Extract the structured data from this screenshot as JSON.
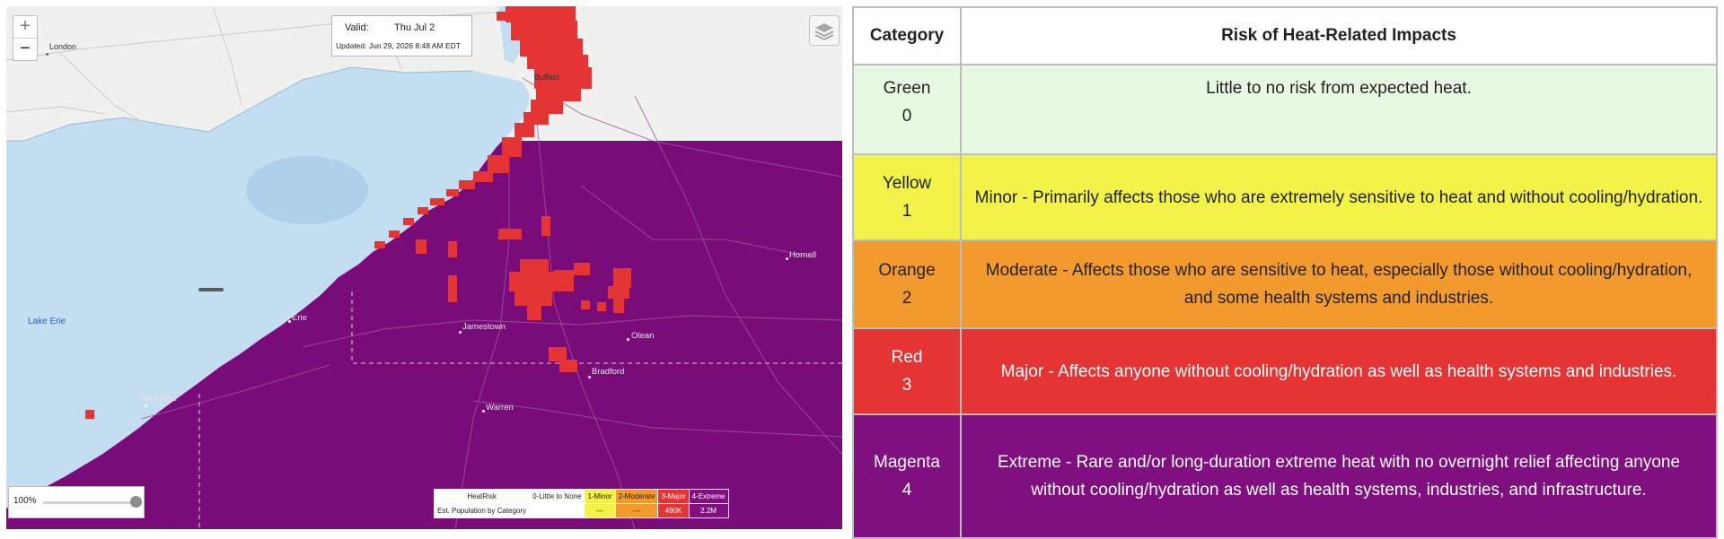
{
  "map": {
    "zoom_in": "+",
    "zoom_out": "−",
    "valid_label": "Valid:",
    "valid_date": "Thu  Jul 2",
    "updated": "Updated: Jun 29, 2026 8:48 AM EDT",
    "layers_icon": "layers-icon",
    "places": {
      "london": "London",
      "buffalo": "Buffalo",
      "lake_erie": "Lake Erie",
      "jamestown": "Jamestown",
      "olean": "Olean",
      "bradford": "Bradford",
      "warren": "Warren",
      "hornell": "Hornell",
      "erie": "Erie",
      "meadville": "Meadville"
    },
    "opacity_label": "100%",
    "opacity_value": 1.0,
    "legend": {
      "row1_label": "HeatRisk",
      "row2_label": "Est. Population by Category",
      "categories": [
        "0-Little to None",
        "1-Minor",
        "2-Moderate",
        "3-Major",
        "4-Extreme"
      ],
      "populations": [
        "",
        "---",
        "---",
        "490K",
        "2.2M"
      ],
      "colors": [
        "#ffffff",
        "#f2f248",
        "#f39a2e",
        "#e53434",
        "#800f80"
      ],
      "text_colors": [
        "#222222",
        "#222222",
        "#222222",
        "#ffffff",
        "#ffffff"
      ]
    },
    "colors": {
      "water": "#c3ddf1",
      "land": "#f0f0ee",
      "extreme": "#7a0c7a",
      "major": "#e53434"
    }
  },
  "risk_table": {
    "header_category": "Category",
    "header_risk": "Risk of Heat-Related Impacts",
    "rows": [
      {
        "name": "Green",
        "level": "0",
        "desc": "Little to no risk from expected heat."
      },
      {
        "name": "Yellow",
        "level": "1",
        "desc": "Minor - Primarily affects those who are extremely sensitive to heat and without cooling/hydration."
      },
      {
        "name": "Orange",
        "level": "2",
        "desc": "Moderate - Affects those who are sensitive to heat, especially those without cooling/hydration, and some health systems and industries."
      },
      {
        "name": "Red",
        "level": "3",
        "desc": "Major - Affects anyone without cooling/hydration as well as health systems and industries."
      },
      {
        "name": "Magenta",
        "level": "4",
        "desc": "Extreme - Rare and/or long-duration extreme heat with no overnight relief affecting anyone without cooling/hydration as well as health systems, industries, and infrastructure."
      }
    ]
  }
}
